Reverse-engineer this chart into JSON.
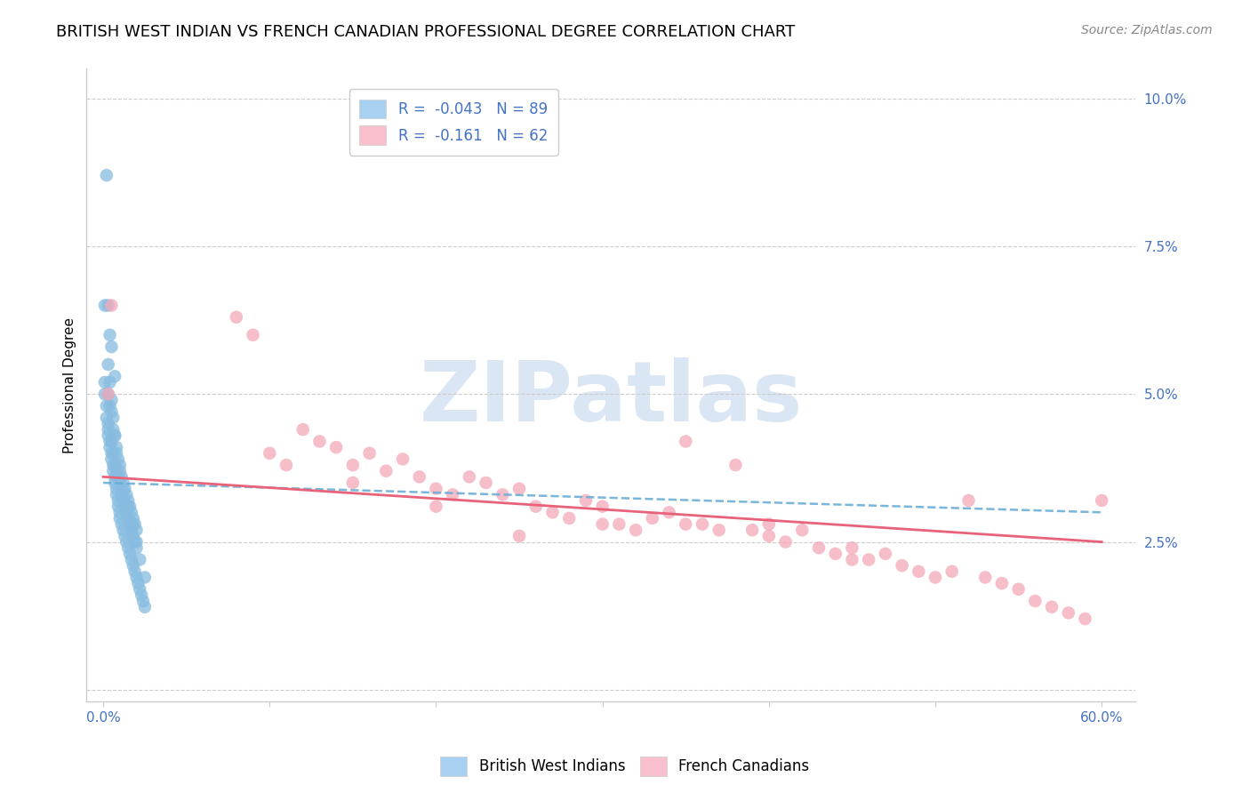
{
  "title": "BRITISH WEST INDIAN VS FRENCH CANADIAN PROFESSIONAL DEGREE CORRELATION CHART",
  "source": "Source: ZipAtlas.com",
  "ylabel": "Professional Degree",
  "xlim": [
    -0.01,
    0.62
  ],
  "ylim": [
    -0.002,
    0.105
  ],
  "xticks": [
    0.0,
    0.1,
    0.2,
    0.3,
    0.4,
    0.5,
    0.6
  ],
  "xtick_labels_show": [
    "0.0%",
    "",
    "",
    "",
    "",
    "",
    "60.0%"
  ],
  "yticks": [
    0.0,
    0.025,
    0.05,
    0.075,
    0.1
  ],
  "ytick_labels": [
    "",
    "2.5%",
    "5.0%",
    "7.5%",
    "10.0%"
  ],
  "series1_label": "British West Indians",
  "series2_label": "French Canadians",
  "series1_color": "#87bce0",
  "series2_color": "#f4a8b8",
  "trend1_color": "#6aaed6",
  "trend2_color": "#e8627a",
  "legend_patch1_color": "#a8d0f0",
  "legend_patch2_color": "#f8c0cc",
  "legend_text_color": "#4472c4",
  "tick_color": "#4472c4",
  "title_fontsize": 13,
  "source_fontsize": 10,
  "axis_label_fontsize": 11,
  "tick_fontsize": 11,
  "watermark_text": "ZIPatlas",
  "watermark_color": "#ccdcf0",
  "bwi_x": [
    0.003,
    0.003,
    0.004,
    0.005,
    0.005,
    0.006,
    0.006,
    0.007,
    0.007,
    0.008,
    0.008,
    0.009,
    0.009,
    0.01,
    0.01,
    0.011,
    0.011,
    0.012,
    0.012,
    0.013,
    0.013,
    0.014,
    0.014,
    0.015,
    0.015,
    0.016,
    0.016,
    0.017,
    0.017,
    0.018,
    0.018,
    0.019,
    0.019,
    0.02,
    0.02,
    0.001,
    0.001,
    0.002,
    0.002,
    0.003,
    0.003,
    0.004,
    0.004,
    0.005,
    0.005,
    0.006,
    0.006,
    0.007,
    0.007,
    0.008,
    0.008,
    0.009,
    0.009,
    0.01,
    0.01,
    0.011,
    0.012,
    0.013,
    0.014,
    0.015,
    0.016,
    0.017,
    0.018,
    0.019,
    0.02,
    0.021,
    0.022,
    0.023,
    0.024,
    0.025,
    0.003,
    0.004,
    0.005,
    0.006,
    0.007,
    0.008,
    0.01,
    0.012,
    0.015,
    0.018,
    0.02,
    0.022,
    0.025,
    0.002,
    0.001,
    0.003,
    0.004,
    0.005,
    0.007
  ],
  "bwi_y": [
    0.05,
    0.045,
    0.048,
    0.042,
    0.047,
    0.044,
    0.04,
    0.043,
    0.038,
    0.041,
    0.037,
    0.039,
    0.036,
    0.038,
    0.035,
    0.036,
    0.033,
    0.035,
    0.032,
    0.034,
    0.031,
    0.033,
    0.03,
    0.032,
    0.029,
    0.031,
    0.028,
    0.03,
    0.027,
    0.029,
    0.026,
    0.028,
    0.025,
    0.027,
    0.024,
    0.052,
    0.05,
    0.048,
    0.046,
    0.044,
    0.043,
    0.042,
    0.041,
    0.04,
    0.039,
    0.038,
    0.037,
    0.036,
    0.035,
    0.034,
    0.033,
    0.032,
    0.031,
    0.03,
    0.029,
    0.028,
    0.027,
    0.026,
    0.025,
    0.024,
    0.023,
    0.022,
    0.021,
    0.02,
    0.019,
    0.018,
    0.017,
    0.016,
    0.015,
    0.014,
    0.055,
    0.052,
    0.049,
    0.046,
    0.043,
    0.04,
    0.037,
    0.034,
    0.031,
    0.028,
    0.025,
    0.022,
    0.019,
    0.087,
    0.065,
    0.065,
    0.06,
    0.058,
    0.053
  ],
  "fc_x": [
    0.003,
    0.005,
    0.08,
    0.09,
    0.1,
    0.11,
    0.12,
    0.13,
    0.14,
    0.15,
    0.16,
    0.17,
    0.18,
    0.19,
    0.2,
    0.21,
    0.22,
    0.23,
    0.24,
    0.25,
    0.26,
    0.27,
    0.28,
    0.29,
    0.3,
    0.31,
    0.32,
    0.33,
    0.34,
    0.35,
    0.36,
    0.37,
    0.38,
    0.39,
    0.4,
    0.41,
    0.42,
    0.43,
    0.44,
    0.45,
    0.46,
    0.47,
    0.48,
    0.49,
    0.5,
    0.51,
    0.52,
    0.53,
    0.54,
    0.55,
    0.56,
    0.57,
    0.58,
    0.59,
    0.6,
    0.3,
    0.35,
    0.25,
    0.2,
    0.15,
    0.4,
    0.45
  ],
  "fc_y": [
    0.05,
    0.065,
    0.063,
    0.06,
    0.04,
    0.038,
    0.044,
    0.042,
    0.041,
    0.038,
    0.04,
    0.037,
    0.039,
    0.036,
    0.034,
    0.033,
    0.036,
    0.035,
    0.033,
    0.034,
    0.031,
    0.03,
    0.029,
    0.032,
    0.031,
    0.028,
    0.027,
    0.029,
    0.03,
    0.042,
    0.028,
    0.027,
    0.038,
    0.027,
    0.026,
    0.025,
    0.027,
    0.024,
    0.023,
    0.024,
    0.022,
    0.023,
    0.021,
    0.02,
    0.019,
    0.02,
    0.032,
    0.019,
    0.018,
    0.017,
    0.015,
    0.014,
    0.013,
    0.012,
    0.032,
    0.028,
    0.028,
    0.026,
    0.031,
    0.035,
    0.028,
    0.022
  ],
  "r1": "-0.043",
  "n1": "89",
  "r2": "-0.161",
  "n2": "62"
}
